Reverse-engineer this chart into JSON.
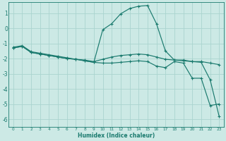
{
  "xlabel": "Humidex (Indice chaleur)",
  "bg_color": "#cce9e5",
  "grid_color": "#aad4cf",
  "line_color": "#1a7a6e",
  "xlim": [
    -0.5,
    23.5
  ],
  "ylim": [
    -6.5,
    1.7
  ],
  "xticks": [
    0,
    1,
    2,
    3,
    4,
    5,
    6,
    7,
    8,
    9,
    10,
    11,
    12,
    13,
    14,
    15,
    16,
    17,
    18,
    19,
    20,
    21,
    22,
    23
  ],
  "yticks": [
    -6,
    -5,
    -4,
    -3,
    -2,
    -1,
    0,
    1
  ],
  "lines": [
    {
      "x": [
        0,
        1,
        2,
        3,
        4,
        5,
        6,
        7,
        8,
        9,
        10,
        11,
        12,
        13,
        14,
        15,
        16,
        17,
        18,
        19,
        20,
        21,
        22,
        23
      ],
      "y": [
        -1.25,
        -1.15,
        -1.55,
        -1.65,
        -1.75,
        -1.85,
        -1.95,
        -2.05,
        -2.1,
        -2.2,
        -2.05,
        -1.9,
        -1.8,
        -1.75,
        -1.7,
        -1.75,
        -1.9,
        -2.05,
        -2.1,
        -2.1,
        -2.2,
        -2.2,
        -2.3,
        -2.4
      ]
    },
    {
      "x": [
        0,
        1,
        2,
        3,
        4,
        5,
        6,
        7,
        8,
        9,
        10,
        11,
        12,
        13,
        14,
        15,
        16,
        17,
        18,
        19,
        20,
        21,
        22,
        23
      ],
      "y": [
        -1.3,
        -1.2,
        -1.6,
        -1.7,
        -1.8,
        -1.9,
        -2.0,
        -2.05,
        -2.15,
        -2.25,
        -2.3,
        -2.3,
        -2.25,
        -2.2,
        -2.15,
        -2.2,
        -2.5,
        -2.6,
        -2.2,
        -2.3,
        -3.3,
        -3.3,
        -5.1,
        -5.0
      ]
    },
    {
      "x": [
        0,
        1,
        2,
        3,
        4,
        5,
        6,
        7,
        8,
        9,
        10,
        11,
        12,
        13,
        14,
        15,
        16,
        17,
        18,
        19,
        20,
        21,
        22,
        23
      ],
      "y": [
        -1.3,
        -1.2,
        -1.6,
        -1.7,
        -1.8,
        -1.9,
        -2.0,
        -2.05,
        -2.15,
        -2.25,
        -0.1,
        0.3,
        0.95,
        1.3,
        1.45,
        1.5,
        0.3,
        -1.5,
        -2.1,
        -2.15,
        -2.2,
        -2.25,
        -3.4,
        -5.8
      ]
    }
  ]
}
